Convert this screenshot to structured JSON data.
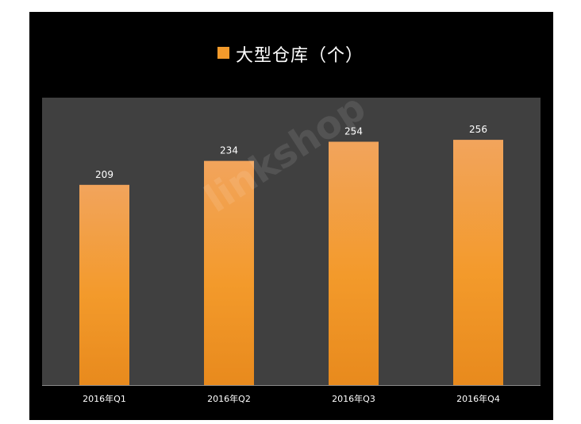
{
  "chart_data": {
    "type": "bar",
    "categories": [
      "2016年Q1",
      "2016年Q2",
      "2016年Q3",
      "2016年Q4"
    ],
    "series": [
      {
        "name": "大型仓库（个）",
        "values": [
          209,
          234,
          254,
          256
        ]
      }
    ],
    "title": "",
    "xlabel": "",
    "ylabel": "",
    "ylim": [
      0,
      300
    ],
    "grid": false,
    "legend_position": "top",
    "colors": {
      "bar": "#f39a2b",
      "bar_top": "#f2a45c",
      "bar_bottom": "#e88a1d",
      "plot_background": "#404040",
      "frame_background": "#000000",
      "text": "#ffffff",
      "axis": "#8a8a8a"
    }
  },
  "watermark": "linkshop"
}
